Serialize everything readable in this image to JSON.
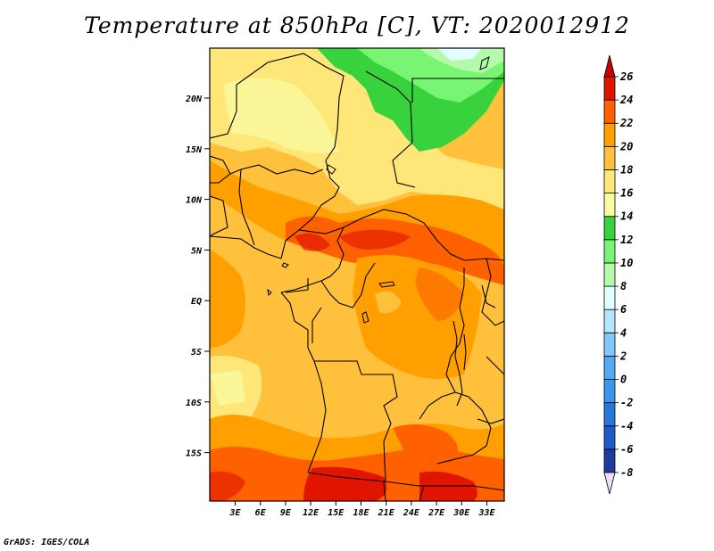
{
  "title": "Temperature at 850hPa [C], VT: 2020012912",
  "credit": "GrADS: IGES/COLA",
  "map": {
    "lat_labels": [
      "20N",
      "15N",
      "10N",
      "5N",
      "EQ",
      "5S",
      "10S",
      "15S"
    ],
    "lon_labels": [
      "3E",
      "6E",
      "9E",
      "12E",
      "15E",
      "18E",
      "21E",
      "24E",
      "27E",
      "30E",
      "33E"
    ],
    "lat_range": [
      -20.0,
      24.5
    ],
    "lon_range": [
      0.0,
      35.0
    ]
  },
  "colorbar": {
    "labels": [
      "26",
      "24",
      "22",
      "20",
      "18",
      "16",
      "14",
      "12",
      "10",
      "8",
      "6",
      "4",
      "2",
      "0",
      "-2",
      "-4",
      "-6",
      "-8"
    ],
    "colors": [
      "#f0dcfa",
      "#1e3ca0",
      "#1e5ac8",
      "#2878dc",
      "#3c96f0",
      "#50aaf5",
      "#82c8ff",
      "#b4e6ff",
      "#e1ffff",
      "#b4faaa",
      "#78f573",
      "#37d23c",
      "#fafaa0",
      "#ffe678",
      "#ffc03c",
      "#ffa000",
      "#ff6000",
      "#e11400",
      "#c80000"
    ]
  }
}
